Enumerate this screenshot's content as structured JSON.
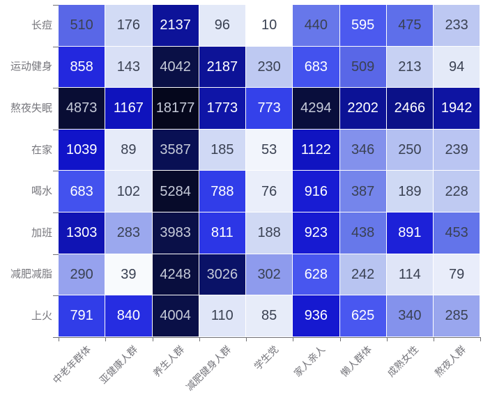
{
  "chart_data": {
    "type": "heatmap",
    "title": "",
    "rows": [
      "长痘",
      "运动健身",
      "熬夜失眠",
      "在家",
      "喝水",
      "加班",
      "减肥减脂",
      "上火"
    ],
    "columns": [
      "中老年群体",
      "亚健康人群",
      "养生人群",
      "减肥健身人群",
      "学生党",
      "家人亲人",
      "懒人群体",
      "成熟女性",
      "熬夜人群"
    ],
    "values": [
      [
        510,
        176,
        2137,
        96,
        10,
        440,
        595,
        475,
        233
      ],
      [
        858,
        143,
        4042,
        2187,
        230,
        683,
        509,
        213,
        94
      ],
      [
        4873,
        1167,
        18177,
        1773,
        773,
        4294,
        2202,
        2466,
        1942
      ],
      [
        1039,
        89,
        3587,
        185,
        53,
        1122,
        346,
        250,
        239
      ],
      [
        683,
        102,
        5284,
        788,
        76,
        916,
        387,
        189,
        228
      ],
      [
        1303,
        283,
        3983,
        811,
        188,
        923,
        438,
        891,
        453
      ],
      [
        290,
        39,
        4248,
        3026,
        302,
        628,
        242,
        114,
        79
      ],
      [
        791,
        840,
        4004,
        110,
        85,
        936,
        625,
        340,
        285
      ]
    ],
    "value_range": [
      10,
      18177
    ],
    "legend": "none",
    "grid": "off",
    "x_label_rotation_deg": 45,
    "axis_color": "#6f6f73",
    "axis_label_color": "#76767c",
    "cell_gap_color": "#ffffff",
    "cell_text_dark": "#3a4152",
    "cell_text_light": "#ffffff",
    "cell_text_dim": "#c6cbd9",
    "color_scale": {
      "low_color": "#ffffff",
      "high_color": "#05071c",
      "anchors": [
        [
          10,
          "#ffffff"
        ],
        [
          40,
          "#f8fafd"
        ],
        [
          60,
          "#eff2fb"
        ],
        [
          100,
          "#e2e8f8"
        ],
        [
          150,
          "#d8dff6"
        ],
        [
          200,
          "#cdd7f4"
        ],
        [
          250,
          "#b4c0f1"
        ],
        [
          300,
          "#8e9bed"
        ],
        [
          350,
          "#8290ec"
        ],
        [
          400,
          "#7181eb"
        ],
        [
          470,
          "#5f70ea"
        ],
        [
          520,
          "#5765e6"
        ],
        [
          600,
          "#4b59f0"
        ],
        [
          700,
          "#4150ee"
        ],
        [
          780,
          "#3340ea"
        ],
        [
          850,
          "#242ae0"
        ],
        [
          930,
          "#1619d0"
        ],
        [
          1050,
          "#1114c8"
        ],
        [
          1200,
          "#0f13ba"
        ],
        [
          1400,
          "#1014ae"
        ],
        [
          1800,
          "#0f15a6"
        ],
        [
          2000,
          "#0e14a0"
        ],
        [
          2250,
          "#0c1294"
        ],
        [
          2500,
          "#0b1186"
        ],
        [
          3050,
          "#0a1266"
        ],
        [
          3600,
          "#091054"
        ],
        [
          4050,
          "#0a1046"
        ],
        [
          4300,
          "#090e3c"
        ],
        [
          4900,
          "#090d34"
        ],
        [
          5300,
          "#070b2a"
        ],
        [
          18177,
          "#05071c"
        ]
      ]
    }
  }
}
